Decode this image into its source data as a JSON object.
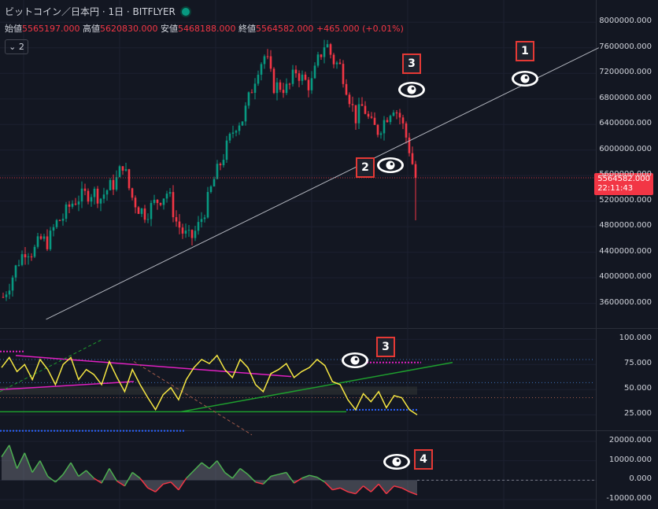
{
  "header": {
    "symbol": "ビットコイン／日本円 · 1日 · BITFLYER"
  },
  "ohlc": {
    "open_label": "始値",
    "open": "5565197.000",
    "high_label": "高値",
    "high": "5620830.000",
    "low_label": "安値",
    "low": "5468188.000",
    "close_label": "終値",
    "close": "5564582.000",
    "change": "+465.000 (+0.01%)"
  },
  "collapse_label": "⌄ 2",
  "price_tag": {
    "price": "5564582.000",
    "countdown": "22:11:43"
  },
  "colors": {
    "up": "#089981",
    "down": "#f23645",
    "rsi": "#f5e642",
    "trend": "#b2b5be",
    "magenta": "#e020c0",
    "green": "#1e9e2e",
    "blue": "#2962ff",
    "badge": "#e53935"
  },
  "markers": [
    {
      "number": "1",
      "icon": "eye-icon"
    },
    {
      "number": "2",
      "icon": "eye-icon"
    },
    {
      "number": "3",
      "icon": "eye-icon"
    },
    {
      "number": "3",
      "icon": "eye-icon"
    },
    {
      "number": "4",
      "icon": "eye-icon"
    }
  ],
  "chart_data": [
    {
      "type": "candlestick",
      "y_ticks": [
        "8000000.000",
        "7600000.000",
        "7200000.000",
        "6800000.000",
        "6400000.000",
        "6000000.000",
        "5600000.000",
        "5200000.000",
        "4800000.000",
        "4400000.000",
        "4000000.000",
        "3600000.000"
      ],
      "ylim": [
        3300000,
        8200000
      ],
      "close_path": [
        3700000,
        3950000,
        4250000,
        4450000,
        4400000,
        4600000,
        4550000,
        4850000,
        4950000,
        5150000,
        5250000,
        5300000,
        5350000,
        5250000,
        5400000,
        5500000,
        5800000,
        5300000,
        5100000,
        5000000,
        5150000,
        5250000,
        5350000,
        4900000,
        4700000,
        4600000,
        4800000,
        5100000,
        5500000,
        5800000,
        6100000,
        6400000,
        6500000,
        6900000,
        7300000,
        7500000,
        7000000,
        7000000,
        6950000,
        7250000,
        7100000,
        7000000,
        7400000,
        7700000,
        7400000,
        7300000,
        6900000,
        6500000,
        6700000,
        6400000,
        6300000,
        6500000,
        6700000,
        6500000,
        6100000,
        5564582
      ],
      "trendline": [
        {
          "x": 0.07,
          "y": 3350000
        },
        {
          "x": 0.91,
          "y": 7600000
        }
      ]
    },
    {
      "type": "line",
      "name": "RSI",
      "y_ticks": [
        "100.000",
        "75.000",
        "50.000",
        "25.000"
      ],
      "ylim": [
        15,
        105
      ],
      "values": [
        72,
        82,
        68,
        75,
        60,
        80,
        70,
        55,
        75,
        82,
        60,
        70,
        65,
        55,
        78,
        62,
        48,
        70,
        55,
        42,
        30,
        45,
        52,
        40,
        60,
        72,
        80,
        76,
        84,
        70,
        62,
        80,
        72,
        55,
        48,
        66,
        70,
        76,
        62,
        68,
        72,
        80,
        74,
        58,
        55,
        40,
        30,
        46,
        38,
        48,
        32,
        44,
        42,
        30,
        25
      ]
    },
    {
      "type": "area",
      "y_ticks": [
        "20000.000",
        "10000.000",
        "0.000",
        "-10000.000"
      ],
      "ylim": [
        -12000,
        22000
      ],
      "values": [
        12000,
        18000,
        6000,
        14000,
        4000,
        10000,
        2000,
        -1000,
        3000,
        9000,
        2000,
        5000,
        1000,
        -1500,
        6000,
        -500,
        -3000,
        4000,
        1000,
        -4000,
        -6000,
        -2000,
        -1000,
        -5000,
        1000,
        5000,
        9000,
        6000,
        10000,
        4000,
        1000,
        6000,
        3000,
        -1000,
        -2000,
        2000,
        3000,
        4000,
        -1500,
        1000,
        2500,
        1500,
        -1000,
        -5000,
        -4000,
        -6000,
        -7000,
        -3000,
        -6000,
        -2000,
        -7000,
        -3000,
        -4000,
        -6000,
        -7500
      ]
    }
  ]
}
